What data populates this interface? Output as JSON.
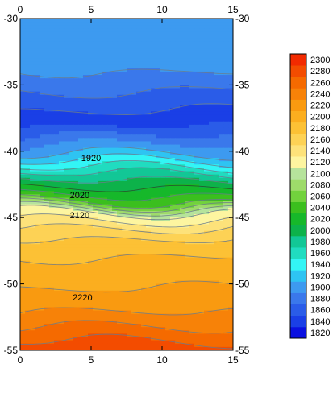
{
  "chart_data": {
    "type": "heatmap",
    "subtype": "filled-contour",
    "x_ticks": [
      0,
      5,
      10,
      15
    ],
    "y_ticks": [
      -30,
      -35,
      -40,
      -45,
      -50,
      -55
    ],
    "xlim": [
      0,
      15
    ],
    "ylim": [
      -55,
      -30
    ],
    "tick_label_sides": "all four",
    "colorbar": {
      "placement": "right",
      "levels": [
        1820,
        1840,
        1860,
        1880,
        1900,
        1920,
        1940,
        1960,
        1980,
        2000,
        2020,
        2040,
        2060,
        2080,
        2100,
        2120,
        2140,
        2160,
        2180,
        2200,
        2220,
        2240,
        2260,
        2280,
        2300
      ],
      "colors": [
        "#0a10e0",
        "#1a3fe6",
        "#2a5ce8",
        "#3a78eb",
        "#3d9af0",
        "#2ec4f2",
        "#33f5f5",
        "#20dcc0",
        "#12c796",
        "#0db24a",
        "#16b82a",
        "#3bbf1e",
        "#72d23d",
        "#9edb6a",
        "#b6e39c",
        "#fdf5a0",
        "#fde27a",
        "#fdd255",
        "#fcc135",
        "#fbae1f",
        "#f99a10",
        "#f78208",
        "#f56a00",
        "#f34c00",
        "#f22a00"
      ]
    },
    "profile": {
      "depth": [
        -30,
        -32,
        -34,
        -35.5,
        -36.8,
        -37.5,
        -38.5,
        -39.5,
        -40.2,
        -41,
        -41.8,
        -42.5,
        -43.2,
        -43.8,
        -44.6,
        -45.8,
        -47,
        -49,
        -51,
        -52.5,
        -54,
        -55
      ],
      "value": [
        1915,
        1910,
        1900,
        1880,
        1865,
        1843,
        1870,
        1900,
        1920,
        1950,
        1985,
        2010,
        2035,
        2060,
        2120,
        2160,
        2190,
        2210,
        2225,
        2245,
        2275,
        2290
      ]
    },
    "contour_labels": [
      {
        "text": "1920",
        "x": 5.0,
        "y": -40.5
      },
      {
        "text": "2020",
        "x": 4.2,
        "y": -43.3
      },
      {
        "text": "2120",
        "x": 4.2,
        "y": -44.8
      },
      {
        "text": "2220",
        "x": 4.4,
        "y": -51.0
      }
    ]
  }
}
